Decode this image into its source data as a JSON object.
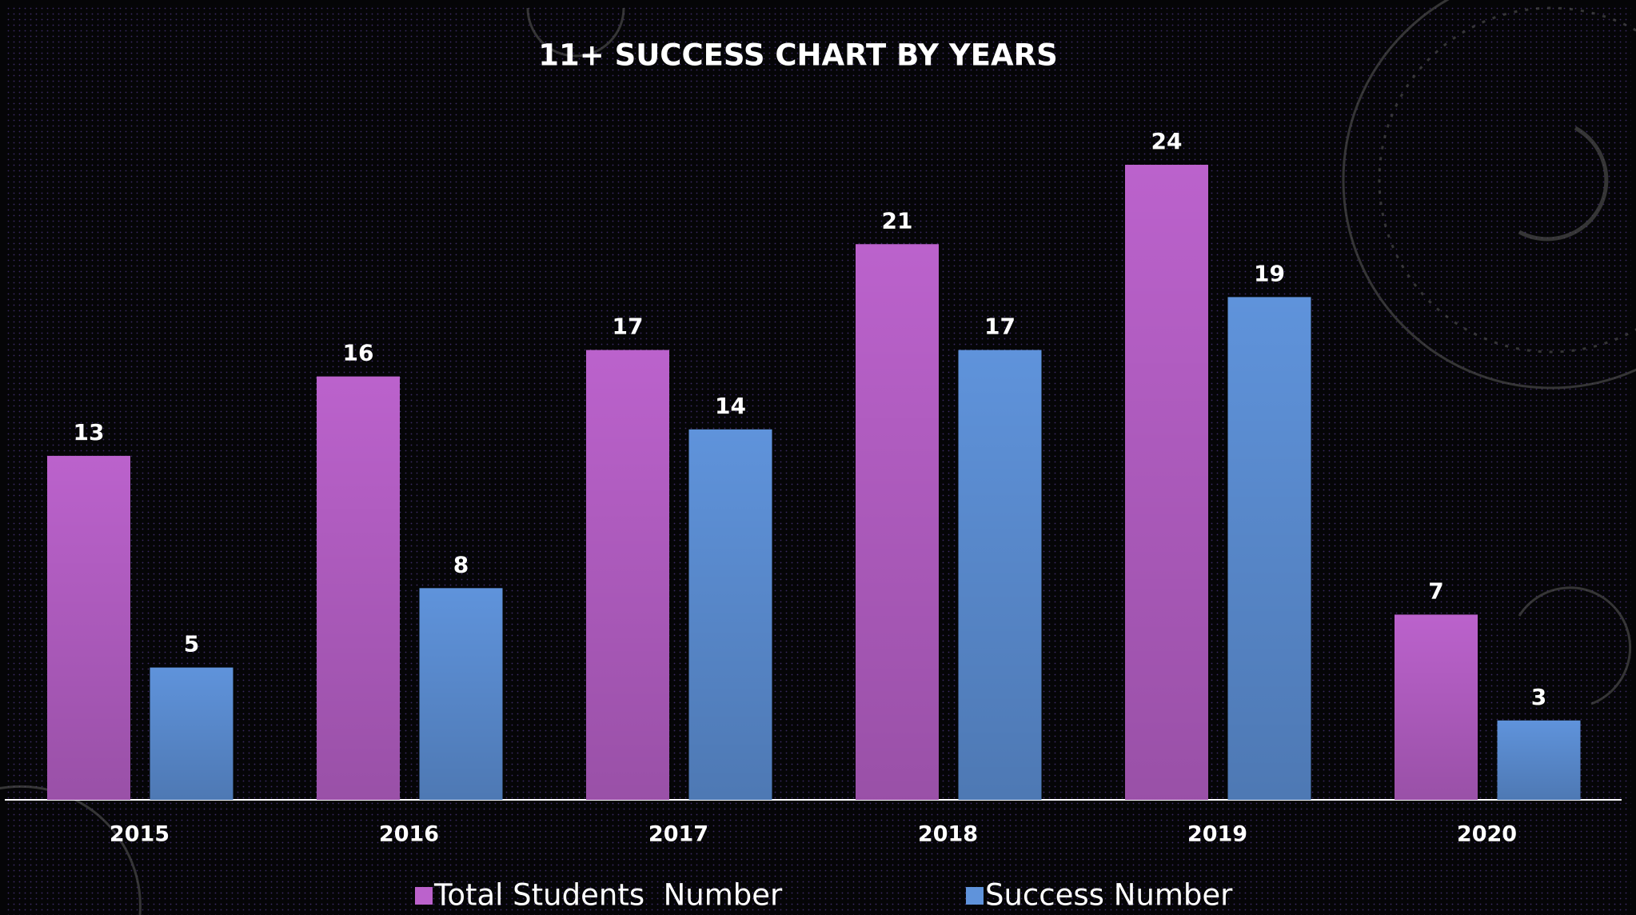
{
  "chart_data": {
    "type": "bar",
    "title": "11+ SUCCESS CHART  BY YEARS",
    "categories": [
      "2015",
      "2016",
      "2017",
      "2018",
      "2019",
      "2020"
    ],
    "series": [
      {
        "name": "Total Students  Number",
        "color": "#bb62cc",
        "values": [
          13,
          16,
          17,
          21,
          24,
          7
        ]
      },
      {
        "name": "Success Number",
        "color": "#5f93db",
        "values": [
          5,
          8,
          14,
          17,
          19,
          3
        ]
      }
    ]
  }
}
